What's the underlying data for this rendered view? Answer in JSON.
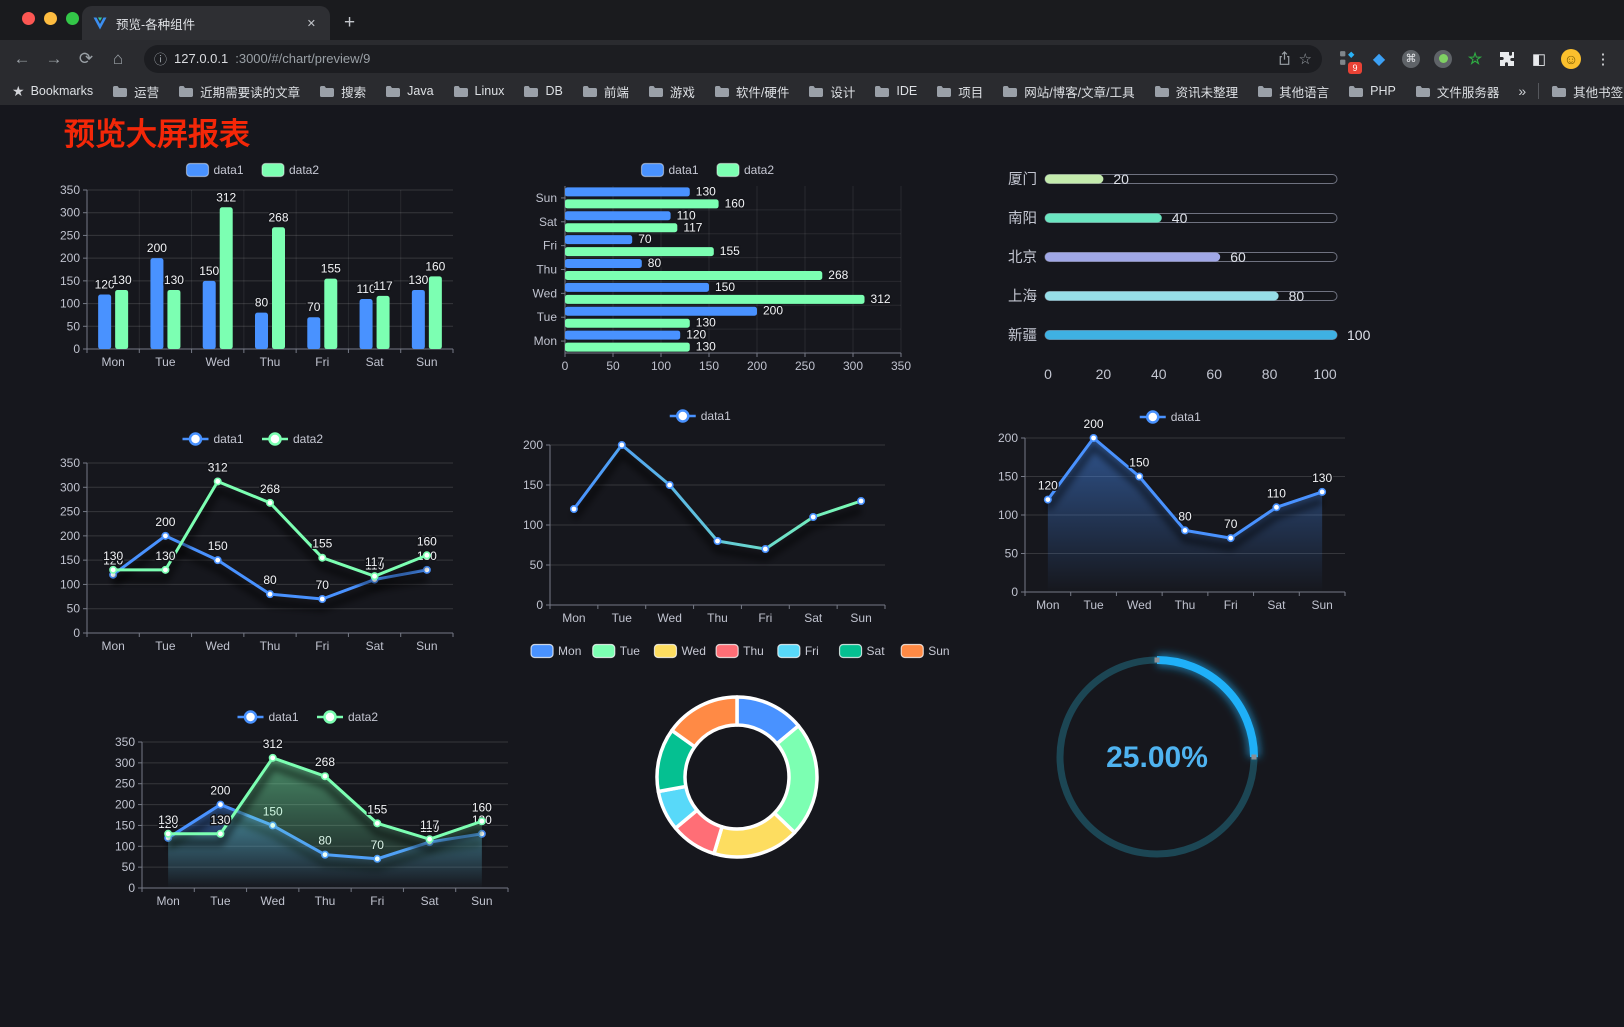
{
  "browser": {
    "tab": {
      "title": "预览-各种组件"
    },
    "toolbar": {
      "url_host": "127.0.0.1",
      "url_path": ":3000/#/chart/preview/9",
      "extension_badge": "9"
    },
    "icons": {
      "back": "←",
      "forward": "→",
      "reload": "⟳",
      "home": "⌂",
      "info": "ⓘ",
      "star": "☆",
      "bookmark_star": "★",
      "menu": "⋮",
      "close": "✕",
      "plus": "+",
      "chevrons": "»",
      "reading_list": "◧",
      "command": "⌘",
      "face": "☺",
      "gem": "◆",
      "green_star": "☆"
    }
  },
  "bookmarks": {
    "label": "Bookmarks",
    "folders": [
      "运营",
      "近期需要读的文章",
      "搜索",
      "Java",
      "Linux",
      "DB",
      "前端",
      "游戏",
      "软件/硬件",
      "设计",
      "IDE",
      "项目",
      "网站/博客/文章/工具",
      "资讯未整理",
      "其他语言",
      "PHP",
      "文件服务器"
    ],
    "other_label": "其他书签"
  },
  "page": {
    "title": "预览大屏报表",
    "title_color": "#f42708",
    "background": "#16171d"
  },
  "chart_data": [
    {
      "id": "bar-vertical",
      "type": "bar",
      "categories": [
        "Mon",
        "Tue",
        "Wed",
        "Thu",
        "Fri",
        "Sat",
        "Sun"
      ],
      "series": [
        {
          "name": "data1",
          "color": "#4992ff",
          "values": [
            120,
            200,
            150,
            80,
            70,
            110,
            130
          ]
        },
        {
          "name": "data2",
          "color": "#7cffb2",
          "values": [
            130,
            130,
            312,
            268,
            155,
            117,
            160
          ]
        }
      ],
      "ylim": [
        0,
        350
      ],
      "ytick": 50,
      "value_labels": true,
      "legend": [
        "data1",
        "data2"
      ],
      "grid": true
    },
    {
      "id": "bar-horizontal",
      "type": "hbar",
      "categories": [
        "Mon",
        "Tue",
        "Wed",
        "Thu",
        "Fri",
        "Sat",
        "Sun"
      ],
      "series": [
        {
          "name": "data1",
          "color": "#4992ff",
          "values": [
            120,
            200,
            150,
            80,
            70,
            110,
            130
          ]
        },
        {
          "name": "data2",
          "color": "#7cffb2",
          "values": [
            130,
            130,
            312,
            268,
            155,
            117,
            160
          ]
        }
      ],
      "xlim": [
        0,
        350
      ],
      "xtick": 50,
      "value_labels": true,
      "legend": [
        "data1",
        "data2"
      ],
      "grid": true
    },
    {
      "id": "city-progress",
      "type": "progress",
      "max": 100,
      "axis_ticks": [
        0,
        20,
        40,
        60,
        80,
        100
      ],
      "items": [
        {
          "label": "厦门",
          "value": 20,
          "color": "#c4ebad"
        },
        {
          "label": "南阳",
          "value": 40,
          "color": "#6be6c1"
        },
        {
          "label": "北京",
          "value": 60,
          "color": "#a0a7e6"
        },
        {
          "label": "上海",
          "value": 80,
          "color": "#96dee8"
        },
        {
          "label": "新疆",
          "value": 100,
          "color": "#3fb1e3"
        }
      ]
    },
    {
      "id": "line-two",
      "type": "line",
      "categories": [
        "Mon",
        "Tue",
        "Wed",
        "Thu",
        "Fri",
        "Sat",
        "Sun"
      ],
      "series": [
        {
          "name": "data1",
          "color": "#4992ff",
          "values": [
            120,
            200,
            150,
            80,
            70,
            110,
            130
          ]
        },
        {
          "name": "data2",
          "color": "#7cffb2",
          "values": [
            130,
            130,
            312,
            268,
            155,
            117,
            160
          ]
        }
      ],
      "ylim": [
        0,
        350
      ],
      "ytick": 50,
      "value_labels": true,
      "legend": [
        "data1",
        "data2"
      ]
    },
    {
      "id": "line-gradient",
      "type": "line",
      "categories": [
        "Mon",
        "Tue",
        "Wed",
        "Thu",
        "Fri",
        "Sat",
        "Sun"
      ],
      "series": [
        {
          "name": "data1",
          "color": "#4992ff",
          "gradient": [
            "#4992ff",
            "#7cffb2"
          ],
          "values": [
            120,
            200,
            150,
            80,
            70,
            110,
            130
          ]
        }
      ],
      "ylim": [
        0,
        200
      ],
      "ytick": 50,
      "value_labels": false,
      "legend": [
        "data1"
      ]
    },
    {
      "id": "line-area",
      "type": "line",
      "categories": [
        "Mon",
        "Tue",
        "Wed",
        "Thu",
        "Fri",
        "Sat",
        "Sun"
      ],
      "series": [
        {
          "name": "data1",
          "color": "#4992ff",
          "area": true,
          "values": [
            120,
            200,
            150,
            80,
            70,
            110,
            130
          ]
        }
      ],
      "ylim": [
        0,
        200
      ],
      "ytick": 50,
      "value_labels": true,
      "legend": [
        "data1"
      ]
    },
    {
      "id": "line-area-two",
      "type": "line",
      "categories": [
        "Mon",
        "Tue",
        "Wed",
        "Thu",
        "Fri",
        "Sat",
        "Sun"
      ],
      "series": [
        {
          "name": "data1",
          "color": "#4992ff",
          "area": true,
          "values": [
            120,
            200,
            150,
            80,
            70,
            110,
            130
          ]
        },
        {
          "name": "data2",
          "color": "#7cffb2",
          "area": true,
          "values": [
            130,
            130,
            312,
            268,
            155,
            117,
            160
          ]
        }
      ],
      "ylim": [
        0,
        350
      ],
      "ytick": 50,
      "value_labels": true,
      "legend": [
        "data1",
        "data2"
      ]
    },
    {
      "id": "pie-week",
      "type": "pie",
      "inner_radius": 52,
      "outer_radius": 80,
      "slices": [
        {
          "label": "Mon",
          "value": 120,
          "color": "#4992ff"
        },
        {
          "label": "Tue",
          "value": 200,
          "color": "#7cffb2"
        },
        {
          "label": "Wed",
          "value": 150,
          "color": "#fddd60"
        },
        {
          "label": "Thu",
          "value": 80,
          "color": "#ff6e76"
        },
        {
          "label": "Fri",
          "value": 70,
          "color": "#58d9f9"
        },
        {
          "label": "Sat",
          "value": 110,
          "color": "#05c091"
        },
        {
          "label": "Sun",
          "value": 130,
          "color": "#ff8a45"
        }
      ]
    },
    {
      "id": "gauge-percent",
      "type": "gauge",
      "value": 25,
      "max": 100,
      "display": "25.00%",
      "bar_color": "#1fb0f8",
      "track_color": "#1c4654",
      "text_color": "#4fb3f0"
    }
  ]
}
